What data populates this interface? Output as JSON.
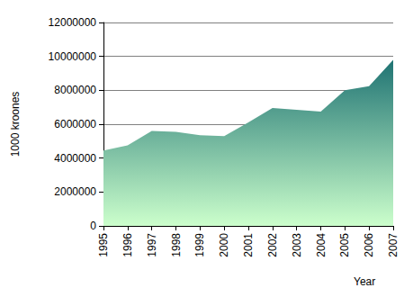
{
  "chart_data": {
    "type": "area",
    "x_label": "Year",
    "y_label": "1000 kroones",
    "categories": [
      "1995",
      "1996",
      "1997",
      "1998",
      "1999",
      "2000",
      "2001",
      "2002",
      "2003",
      "2004",
      "2005",
      "2006",
      "2007"
    ],
    "values": [
      4450000,
      4750000,
      5600000,
      5550000,
      5350000,
      5300000,
      6100000,
      6950000,
      6850000,
      6750000,
      8000000,
      8250000,
      9800000
    ],
    "color": "#1f7373",
    "ylim": [
      0,
      12000000
    ],
    "yticks": [
      0,
      2000000,
      4000000,
      6000000,
      8000000,
      10000000,
      12000000
    ],
    "grid": true
  }
}
